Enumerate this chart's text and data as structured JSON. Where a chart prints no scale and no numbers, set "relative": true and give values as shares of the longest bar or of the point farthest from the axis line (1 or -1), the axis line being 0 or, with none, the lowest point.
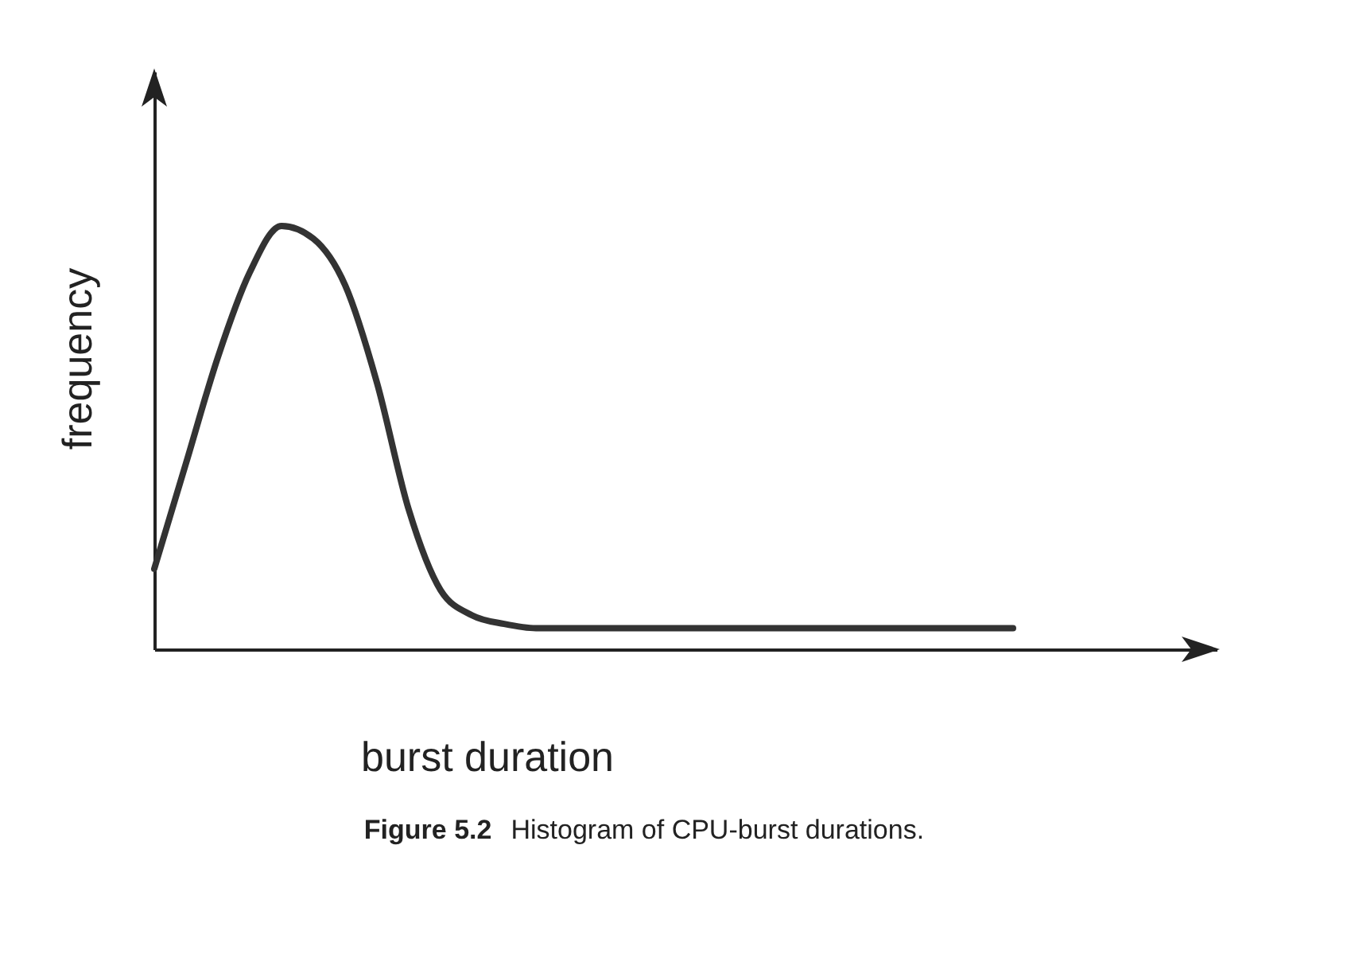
{
  "chart_data": {
    "type": "line",
    "title": "Figure 5.2",
    "subtitle": "Histogram of CPU-burst durations.",
    "xlabel": "burst duration",
    "ylabel": "frequency",
    "relative": true,
    "grid": false,
    "marker": "none",
    "line_style": "solid",
    "categories": [
      null,
      null,
      null,
      null,
      null,
      null,
      null,
      null,
      null,
      null,
      null,
      null,
      null,
      null,
      null,
      null,
      null,
      null,
      null,
      null,
      null,
      null,
      null,
      null,
      null,
      null,
      null,
      null,
      null,
      null,
      null,
      null,
      null,
      null
    ],
    "series": [
      {
        "color": "#333333",
        "values": [
          0.19,
          0.44,
          0.69,
          0.89,
          1,
          0.97,
          0.86,
          0.63,
          0.33,
          0.14,
          0.08,
          0.06,
          0.05,
          0.05,
          0.05,
          0.05,
          0.05,
          0.05,
          0.05,
          0.05,
          0.05,
          0.05,
          0.05,
          0.05,
          0.05,
          0.05,
          0.05,
          0.05,
          null,
          null,
          null,
          null,
          null,
          null
        ]
      }
    ]
  }
}
